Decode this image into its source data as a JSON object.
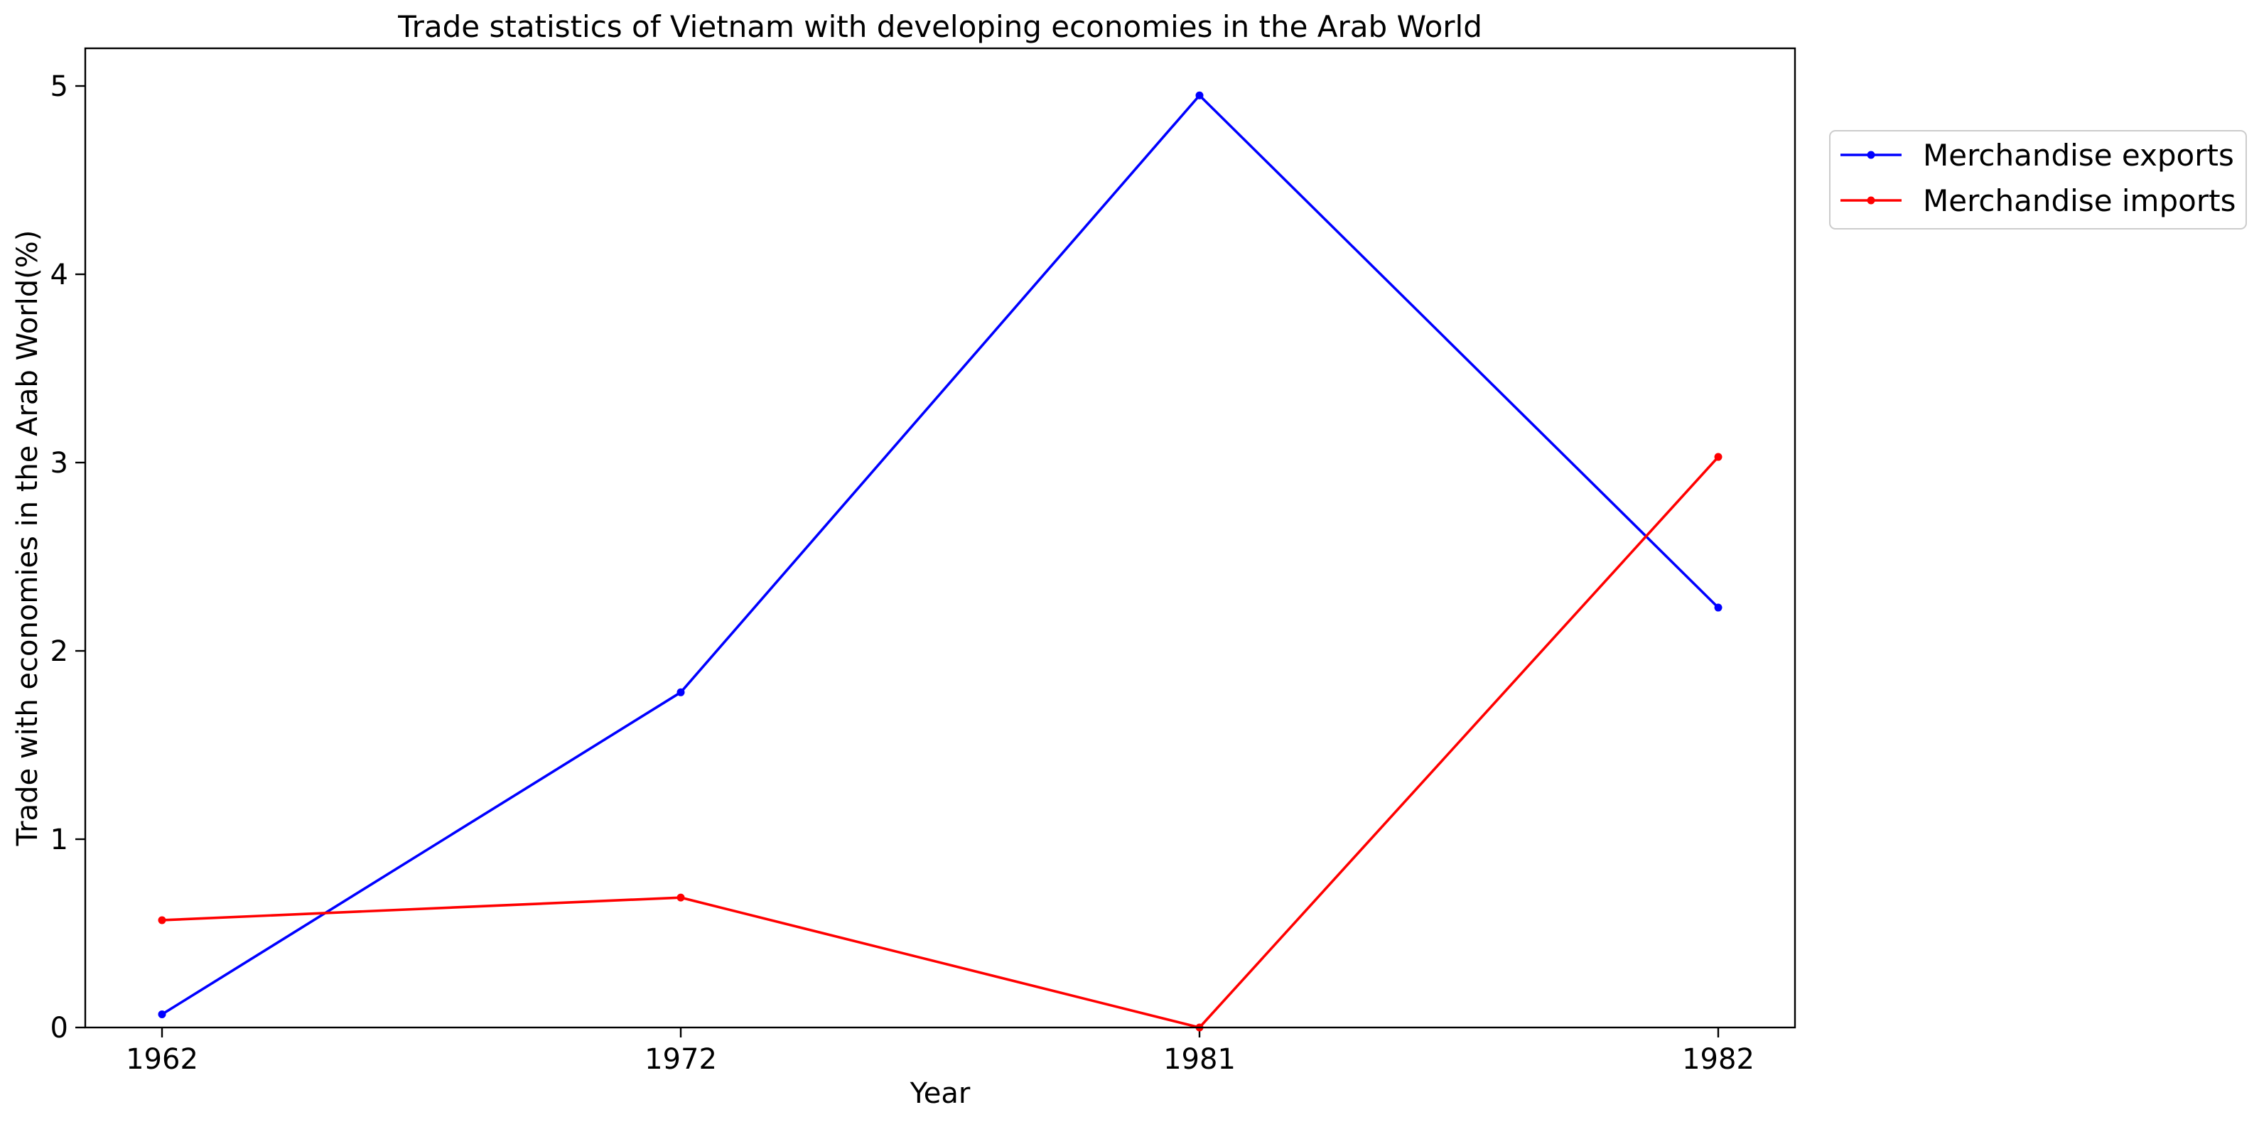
{
  "chart_data": {
    "type": "line",
    "title": "Trade statistics of Vietnam with developing economies in the Arab World",
    "xlabel": "Year",
    "ylabel": "Trade with economies in the Arab World(%)",
    "categories": [
      "1962",
      "1972",
      "1981",
      "1982"
    ],
    "ylim": [
      0,
      5.2
    ],
    "yticks": [
      0,
      1,
      2,
      3,
      4,
      5
    ],
    "grid": false,
    "legend_position": "outside-right-top",
    "series": [
      {
        "name": "Merchandise exports",
        "color": "#0000ff",
        "values": [
          0.07,
          1.78,
          4.95,
          2.23
        ]
      },
      {
        "name": "Merchandise imports",
        "color": "#ff0000",
        "values": [
          0.57,
          0.69,
          0.0,
          3.03
        ]
      }
    ]
  }
}
